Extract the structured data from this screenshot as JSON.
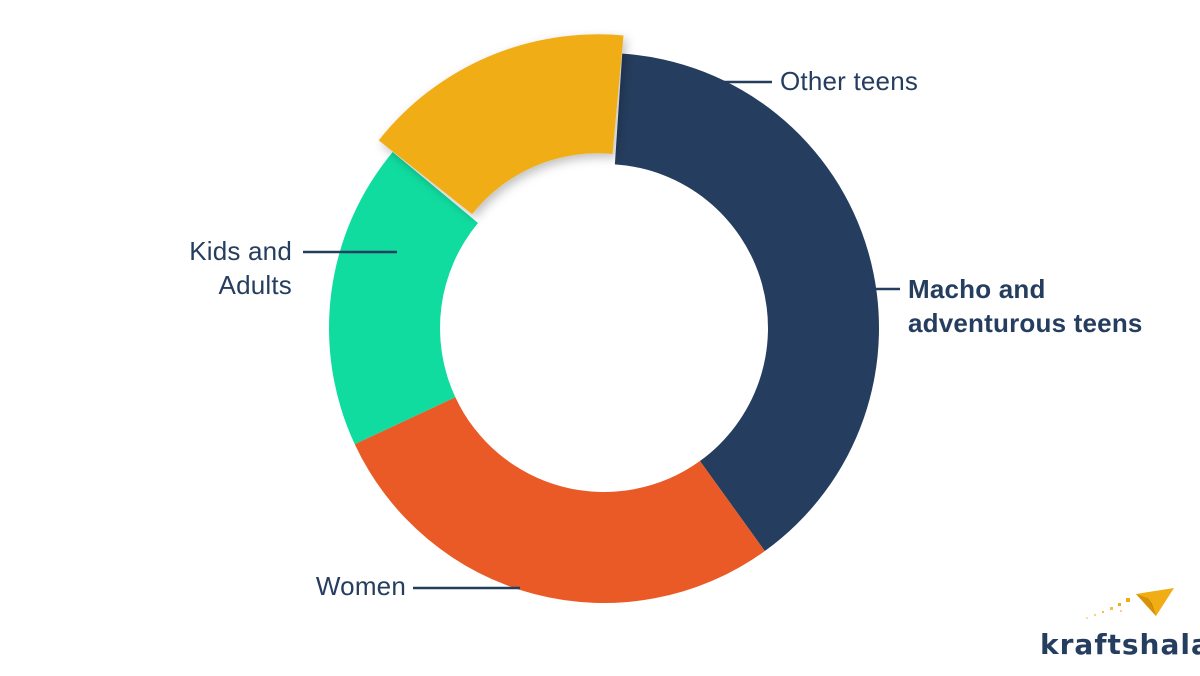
{
  "chart_data": {
    "type": "pie",
    "style": "donut",
    "title": "",
    "slices": [
      {
        "name": "Other teens",
        "value": 18,
        "color": "#10dca0"
      },
      {
        "name": "Macho and adventurous teens",
        "value": 15,
        "color": "#f0ad14",
        "emphasized": true
      },
      {
        "name": "Women",
        "value": 39,
        "color": "#253d5e"
      },
      {
        "name": "Kids and Adults",
        "value": 28,
        "color": "#ea5a26"
      }
    ],
    "labels": {
      "other": [
        "Other teens"
      ],
      "kids": [
        "Kids and",
        "Adults"
      ],
      "macho": [
        "Macho and",
        "adventurous teens"
      ],
      "women": [
        "Women"
      ]
    }
  },
  "brand": {
    "logo_text": "kraftshala",
    "logo_icon": "paper-plane-icon",
    "text_color": "#253d5e",
    "accent": "#f0ad14"
  }
}
